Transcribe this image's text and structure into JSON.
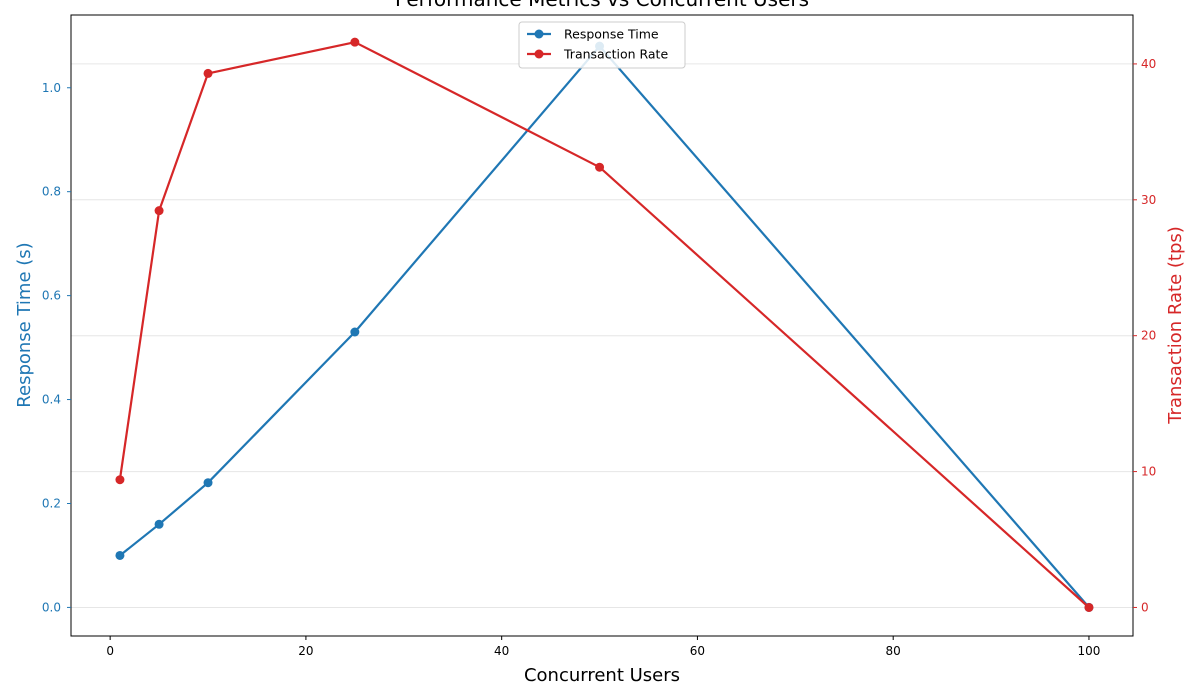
{
  "chart_data": {
    "type": "line",
    "title": "Performance Metrics vs Concurrent Users",
    "xlabel": "Concurrent Users",
    "xlim": [
      -4,
      104.5
    ],
    "xticks": [
      0,
      20,
      40,
      60,
      80,
      100
    ],
    "x": [
      1,
      5,
      10,
      25,
      50,
      100
    ],
    "grid": true,
    "legend_position": "top-center",
    "axes": {
      "left": {
        "label": "Response Time (s)",
        "color": "#1f77b4",
        "ylim": [
          -0.055,
          1.14
        ],
        "ticks": [
          0.0,
          0.2,
          0.4,
          0.6,
          0.8,
          1.0
        ],
        "tick_labels": [
          "0.0",
          "0.2",
          "0.4",
          "0.6",
          "0.8",
          "1.0"
        ]
      },
      "right": {
        "label": "Transaction Rate (tps)",
        "color": "#d62728",
        "ylim": [
          -2.1,
          43.6
        ],
        "ticks": [
          0,
          10,
          20,
          30,
          40
        ],
        "tick_labels": [
          "0",
          "10",
          "20",
          "30",
          "40"
        ]
      }
    },
    "series": [
      {
        "name": "Response Time",
        "axis": "left",
        "color": "#1f77b4",
        "values": [
          0.1,
          0.16,
          0.24,
          0.53,
          1.08,
          0.0
        ]
      },
      {
        "name": "Transaction Rate",
        "axis": "right",
        "color": "#d62728",
        "values": [
          9.4,
          29.2,
          39.3,
          41.6,
          32.4,
          0.0
        ]
      }
    ]
  }
}
